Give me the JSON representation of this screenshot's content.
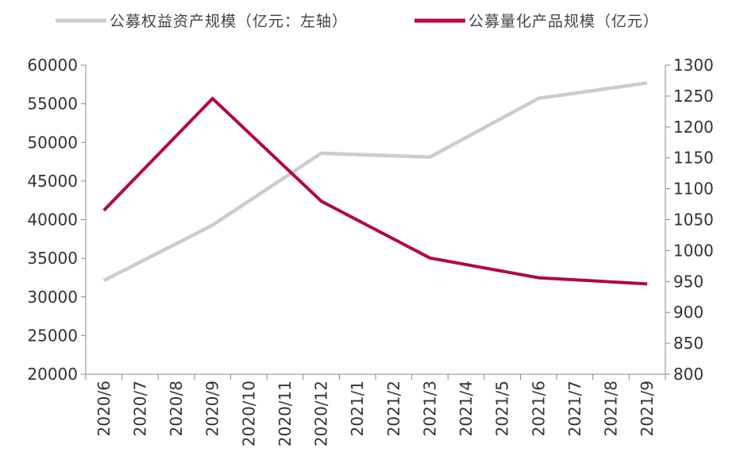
{
  "chart_data": {
    "type": "line",
    "categories": [
      "2020/6",
      "2020/7",
      "2020/8",
      "2020/9",
      "2020/10",
      "2020/11",
      "2020/12",
      "2021/1",
      "2021/2",
      "2021/3",
      "2021/4",
      "2021/5",
      "2021/6",
      "2021/7",
      "2021/8",
      "2021/9"
    ],
    "series": [
      {
        "name": "公募权益资产规模（亿元：左轴）",
        "axis": "left",
        "color": "#cccccc",
        "x": [
          "2020/6",
          "2020/9",
          "2020/12",
          "2021/3",
          "2021/6",
          "2021/9"
        ],
        "values": [
          32100,
          39300,
          48600,
          48100,
          55700,
          57700
        ]
      },
      {
        "name": "公募量化产品规模（亿元）",
        "axis": "right",
        "color": "#b5093a",
        "x": [
          "2020/6",
          "2020/9",
          "2020/12",
          "2021/3",
          "2021/6",
          "2021/9"
        ],
        "values": [
          1065,
          1246,
          1080,
          988,
          956,
          946
        ]
      }
    ],
    "y_left": {
      "min": 20000,
      "max": 60000,
      "step": 5000,
      "ticks": [
        "20000",
        "25000",
        "30000",
        "35000",
        "40000",
        "45000",
        "50000",
        "55000",
        "60000"
      ]
    },
    "y_right": {
      "min": 800,
      "max": 1300,
      "step": 50,
      "ticks": [
        "800",
        "850",
        "900",
        "950",
        "1000",
        "1050",
        "1100",
        "1150",
        "1200",
        "1250",
        "1300"
      ]
    },
    "grid": false,
    "legend_position": "top"
  }
}
